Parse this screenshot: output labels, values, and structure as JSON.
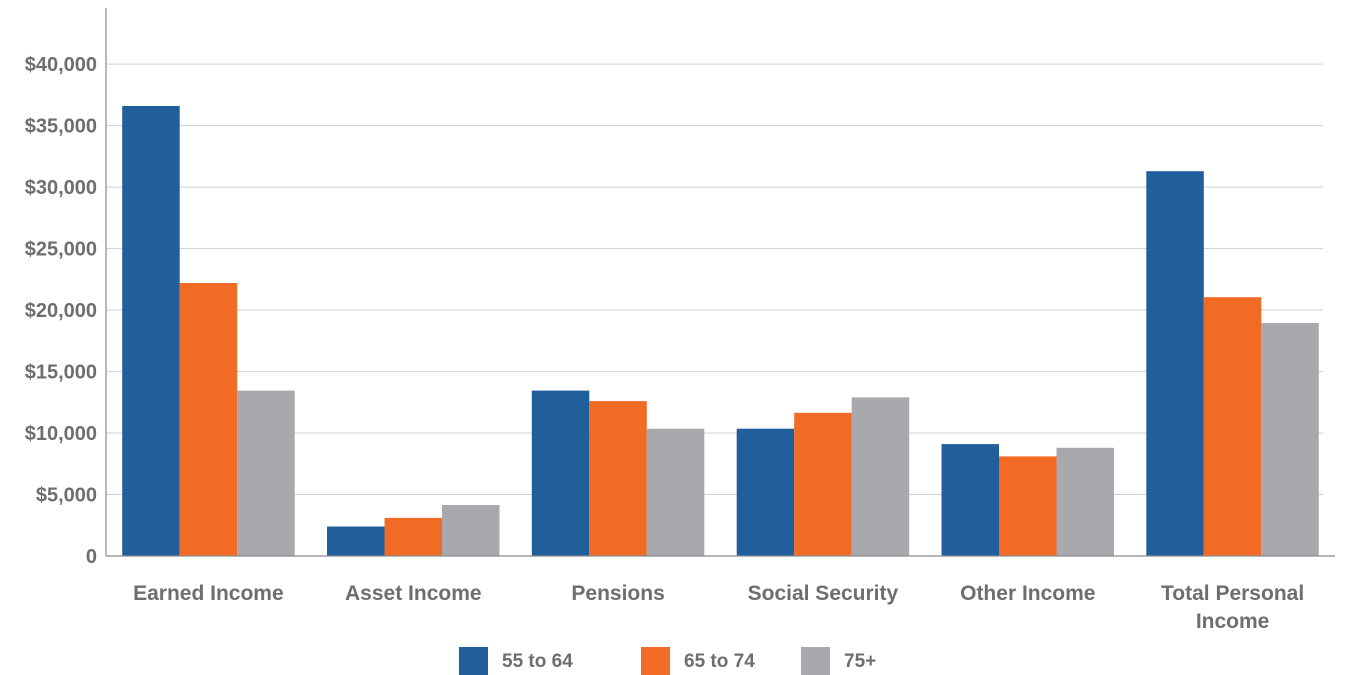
{
  "chart_data": {
    "type": "bar",
    "categories": [
      "Earned Income",
      "Asset Income",
      "Pensions",
      "Social Security",
      "Other Income",
      "Total Personal Income"
    ],
    "category_lines": [
      [
        "Earned Income"
      ],
      [
        "Asset Income"
      ],
      [
        "Pensions"
      ],
      [
        "Social Security"
      ],
      [
        "Other Income"
      ],
      [
        "Total Personal",
        "Income"
      ]
    ],
    "series": [
      {
        "name": "55 to 64",
        "color": "#215e9c",
        "values": [
          36600,
          2400,
          13450,
          10350,
          9100,
          31300
        ]
      },
      {
        "name": "65 to 74",
        "color": "#f26b25",
        "values": [
          22200,
          3100,
          12600,
          11650,
          8100,
          21050
        ]
      },
      {
        "name": "75+",
        "color": "#a7a9ac",
        "values": [
          13450,
          4150,
          10350,
          12900,
          8800,
          18950
        ]
      }
    ],
    "yticks": [
      0,
      5000,
      10000,
      15000,
      20000,
      25000,
      30000,
      35000,
      40000
    ],
    "ytick_labels": [
      "0",
      "$5,000",
      "$10,000",
      "$15,000",
      "$20,000",
      "$25,000",
      "$30,000",
      "$35,000",
      "$40,000"
    ],
    "ylim": [
      0,
      44000
    ],
    "title": "",
    "xlabel": "",
    "ylabel": "",
    "grid": true,
    "legend_position": "bottom-center"
  }
}
